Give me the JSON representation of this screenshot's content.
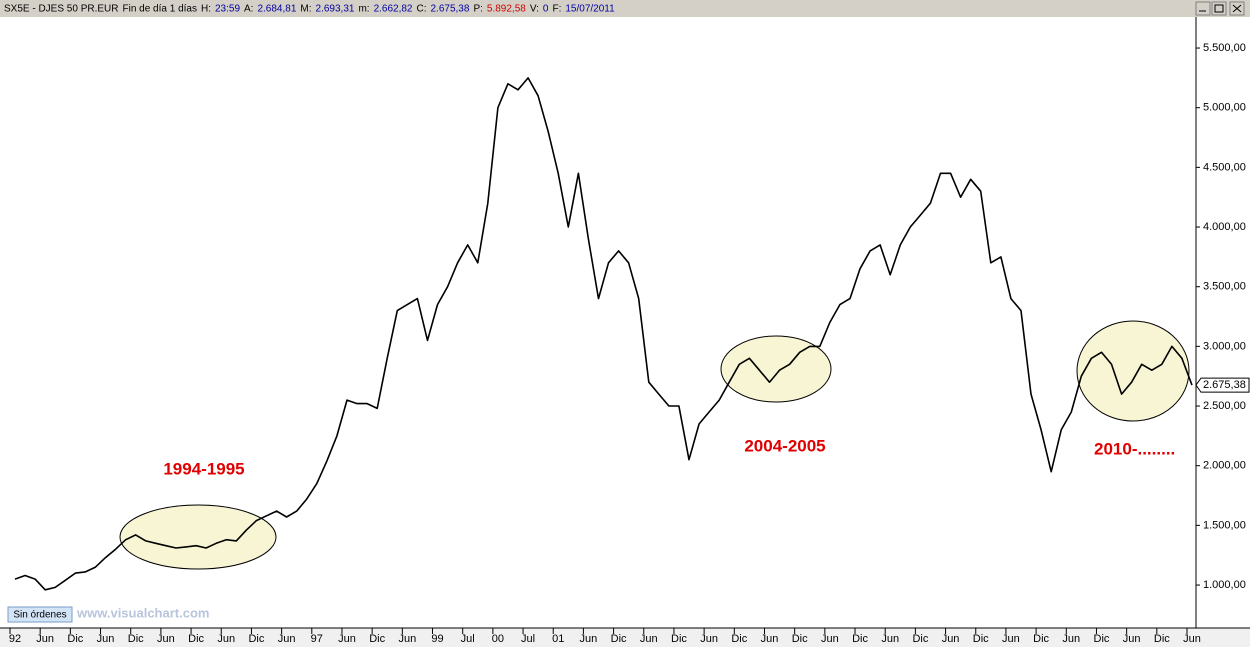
{
  "header": {
    "symbol": "SX5E - DJES 50 PR.EUR",
    "period": "Fin de día 1 días",
    "items": [
      {
        "label": "H:",
        "value": "23:59"
      },
      {
        "label": "A:",
        "value": "2.684,81"
      },
      {
        "label": "M:",
        "value": "2.693,31"
      },
      {
        "label": "m:",
        "value": "2.662,82"
      },
      {
        "label": "C:",
        "value": "2.675,38"
      },
      {
        "label": "P:",
        "value": "5.892,58"
      },
      {
        "label": "V:",
        "value": "0"
      },
      {
        "label": "F:",
        "value": "15/07/2011"
      }
    ]
  },
  "status_button": "Sin órdenes",
  "watermark": "www.visualchart.com",
  "chart_data": {
    "type": "line",
    "color": "#000000",
    "categories": [
      "92",
      null,
      null,
      "Jun",
      null,
      null,
      "Dic",
      null,
      null,
      "Jun",
      null,
      null,
      "Dic",
      null,
      null,
      "Jun",
      null,
      null,
      "Dic",
      null,
      null,
      "Jun",
      null,
      null,
      "Dic",
      null,
      null,
      "Jun",
      null,
      null,
      "97",
      null,
      null,
      "Jun",
      null,
      null,
      "Dic",
      null,
      null,
      "Jun",
      null,
      null,
      "99",
      null,
      null,
      "Jul",
      null,
      null,
      "00",
      null,
      null,
      "Jul",
      null,
      null,
      "01",
      null,
      null,
      "Jun",
      null,
      null,
      "Dic",
      null,
      null,
      "Jun",
      null,
      null,
      "Dic",
      null,
      null,
      "Jun",
      null,
      null,
      "Dic",
      null,
      null,
      "Jun",
      null,
      null,
      "Dic",
      null,
      null,
      "Jun",
      null,
      null,
      "Dic",
      null,
      null,
      "Jun",
      null,
      null,
      "Dic",
      null,
      null,
      "Jun",
      null,
      null,
      "Dic",
      null,
      null,
      "Jun",
      null,
      null,
      "Dic",
      null,
      null,
      "Jun",
      null,
      null,
      "Dic",
      null,
      null,
      "Jun",
      null,
      null,
      "Dic",
      null,
      null,
      "Jun"
    ],
    "values": [
      1050,
      1080,
      1050,
      960,
      980,
      1040,
      1100,
      1110,
      1150,
      1230,
      1300,
      1380,
      1420,
      1370,
      1350,
      1330,
      1310,
      1320,
      1330,
      1310,
      1350,
      1380,
      1370,
      1460,
      1540,
      1580,
      1620,
      1570,
      1620,
      1720,
      1850,
      2040,
      2250,
      2550,
      2520,
      2520,
      2480,
      2900,
      3300,
      3350,
      3400,
      3050,
      3350,
      3500,
      3700,
      3850,
      3700,
      4200,
      5000,
      5200,
      5150,
      5250,
      5100,
      4800,
      4450,
      4000,
      4450,
      3900,
      3400,
      3700,
      3800,
      3700,
      3400,
      2700,
      2600,
      2500,
      2500,
      2050,
      2350,
      2450,
      2550,
      2700,
      2850,
      2900,
      2800,
      2700,
      2800,
      2850,
      2950,
      3000,
      3000,
      3200,
      3350,
      3400,
      3650,
      3800,
      3850,
      3600,
      3850,
      4000,
      4100,
      4200,
      4450,
      4450,
      4250,
      4400,
      4300,
      3700,
      3750,
      3400,
      3300,
      2600,
      2300,
      1950,
      2300,
      2450,
      2750,
      2900,
      2950,
      2850,
      2600,
      2700,
      2850,
      2800,
      2850,
      3000,
      2900,
      2675.38
    ],
    "ylim": [
      640,
      5760
    ],
    "yticks": [
      {
        "value": 1000,
        "label": "1.000,00"
      },
      {
        "value": 1500,
        "label": "1.500,00"
      },
      {
        "value": 2000,
        "label": "2.000,00"
      },
      {
        "value": 2500,
        "label": "2.500,00"
      },
      {
        "value": 3000,
        "label": "3.000,00"
      },
      {
        "value": 3500,
        "label": "3.500,00"
      },
      {
        "value": 4000,
        "label": "4.000,00"
      },
      {
        "value": 4500,
        "label": "4.500,00"
      },
      {
        "value": 5000,
        "label": "5.000,00"
      },
      {
        "value": 5500,
        "label": "5.500,00"
      }
    ],
    "last_price": {
      "value": 2675.38,
      "label": "2.675,38"
    },
    "annotations": [
      "1994-1995",
      "2004-2005",
      "2010-........"
    ],
    "grid": false
  }
}
